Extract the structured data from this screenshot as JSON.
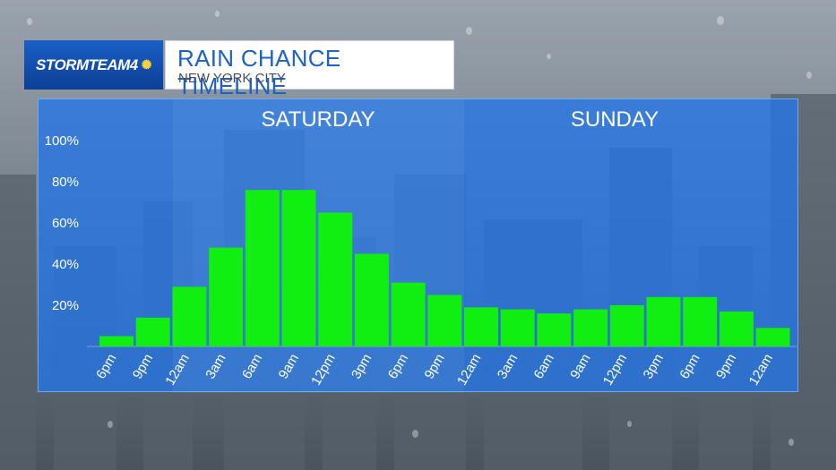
{
  "branding": {
    "logo_text": "STORMTEAM4",
    "network_icon": "peacock-icon"
  },
  "header": {
    "title": "RAIN CHANCE TIMELINE",
    "subtitle": "NEW YORK CITY"
  },
  "colors": {
    "bar": "#11ee11",
    "panel": "#2376e8",
    "title": "#1b63c9",
    "logo_bg": "#0d3f96"
  },
  "chart_data": {
    "type": "bar",
    "title": "RAIN CHANCE TIMELINE",
    "subtitle": "NEW YORK CITY",
    "day_labels": [
      "SATURDAY",
      "SUNDAY"
    ],
    "categories": [
      "6pm",
      "9pm",
      "12am",
      "3am",
      "6am",
      "9am",
      "12pm",
      "3pm",
      "6pm",
      "9pm",
      "12am",
      "3am",
      "6am",
      "9am",
      "12pm",
      "3pm",
      "6pm",
      "9pm",
      "12am"
    ],
    "values": [
      5,
      14,
      29,
      48,
      76,
      76,
      65,
      45,
      31,
      25,
      19,
      18,
      16,
      18,
      20,
      24,
      24,
      17,
      9
    ],
    "ytick_labels": [
      "20%",
      "40%",
      "60%",
      "80%",
      "100%"
    ],
    "yticks": [
      20,
      40,
      60,
      80,
      100
    ],
    "ylim": [
      0,
      117
    ],
    "xlabel": "",
    "ylabel": "",
    "grid": false,
    "legend": "none"
  }
}
